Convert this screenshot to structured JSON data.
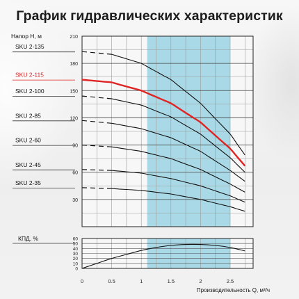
{
  "title": "График гидравлических характеристик",
  "colors": {
    "highlight_band": "#a9d9e6",
    "highlight_series": "#e02424",
    "curve": "#111111",
    "grid": "#222222",
    "bg": "#f0f0f0"
  },
  "chart_data": [
    {
      "type": "line",
      "name": "head",
      "ylabel": "Напор H, м",
      "ylim": [
        0,
        210
      ],
      "yticks": [
        30,
        60,
        90,
        120,
        150,
        180,
        210
      ],
      "xlim": [
        0,
        2.75
      ],
      "highlight_band": [
        1.1,
        2.5
      ],
      "grid": true,
      "series": [
        {
          "name": "SKU 2-135",
          "highlight": false,
          "dashed_x": [
            0,
            0.5
          ],
          "x": [
            0,
            0.5,
            1.0,
            1.5,
            2.0,
            2.5,
            2.75
          ],
          "values": [
            193,
            190,
            180,
            162,
            136,
            102,
            79
          ]
        },
        {
          "name": "SKU 2-115",
          "highlight": true,
          "dashed_x": null,
          "x": [
            0,
            0.5,
            1.0,
            1.5,
            2.0,
            2.5,
            2.75
          ],
          "values": [
            162,
            159,
            150,
            136,
            115,
            86,
            67
          ]
        },
        {
          "name": "SKU 2-100",
          "highlight": false,
          "dashed_x": [
            0,
            0.5
          ],
          "x": [
            0,
            0.5,
            1.0,
            1.5,
            2.0,
            2.5,
            2.75
          ],
          "values": [
            144,
            141,
            134,
            121,
            102,
            76,
            60
          ]
        },
        {
          "name": "SKU 2-85",
          "highlight": false,
          "dashed_x": [
            0,
            0.5
          ],
          "x": [
            0,
            0.5,
            1.0,
            1.5,
            2.0,
            2.5,
            2.75
          ],
          "values": [
            117,
            114,
            108,
            98,
            83,
            62,
            50
          ]
        },
        {
          "name": "SKU 2-60",
          "highlight": false,
          "dashed_x": [
            0,
            0.5
          ],
          "x": [
            0,
            0.5,
            1.0,
            1.5,
            2.0,
            2.5,
            2.75
          ],
          "values": [
            90,
            88,
            83,
            75,
            63,
            47,
            38
          ]
        },
        {
          "name": "SKU 2-45",
          "highlight": false,
          "dashed_x": [
            0,
            0.5
          ],
          "x": [
            0,
            0.5,
            1.0,
            1.5,
            2.0,
            2.5,
            2.75
          ],
          "values": [
            63,
            62,
            59,
            53,
            45,
            34,
            27
          ]
        },
        {
          "name": "SKU 2-35",
          "highlight": false,
          "dashed_x": [
            0,
            0.5
          ],
          "x": [
            0,
            0.5,
            1.0,
            1.5,
            2.0,
            2.5,
            2.75
          ],
          "values": [
            43,
            42,
            40,
            36,
            30,
            22,
            17
          ]
        }
      ]
    },
    {
      "type": "line",
      "name": "efficiency",
      "ylabel": "КПД, %",
      "ylim": [
        0,
        60
      ],
      "yticks": [
        0,
        10,
        20,
        30,
        40,
        50,
        60
      ],
      "xlim": [
        0,
        2.75
      ],
      "xlabel": "Производительность Q, м³/ч",
      "xticks": [
        "0",
        "0.5",
        "1",
        "1.5",
        "2",
        "2.5"
      ],
      "highlight_band": [
        1.1,
        2.5
      ],
      "grid": true,
      "series": [
        {
          "x": [
            0,
            0.25,
            0.5,
            0.75,
            1.0,
            1.25,
            1.5,
            1.75,
            2.0,
            2.25,
            2.5,
            2.75
          ],
          "values": [
            0,
            10,
            20,
            28,
            36,
            42,
            46,
            48,
            48,
            46,
            42,
            35
          ]
        }
      ]
    }
  ]
}
